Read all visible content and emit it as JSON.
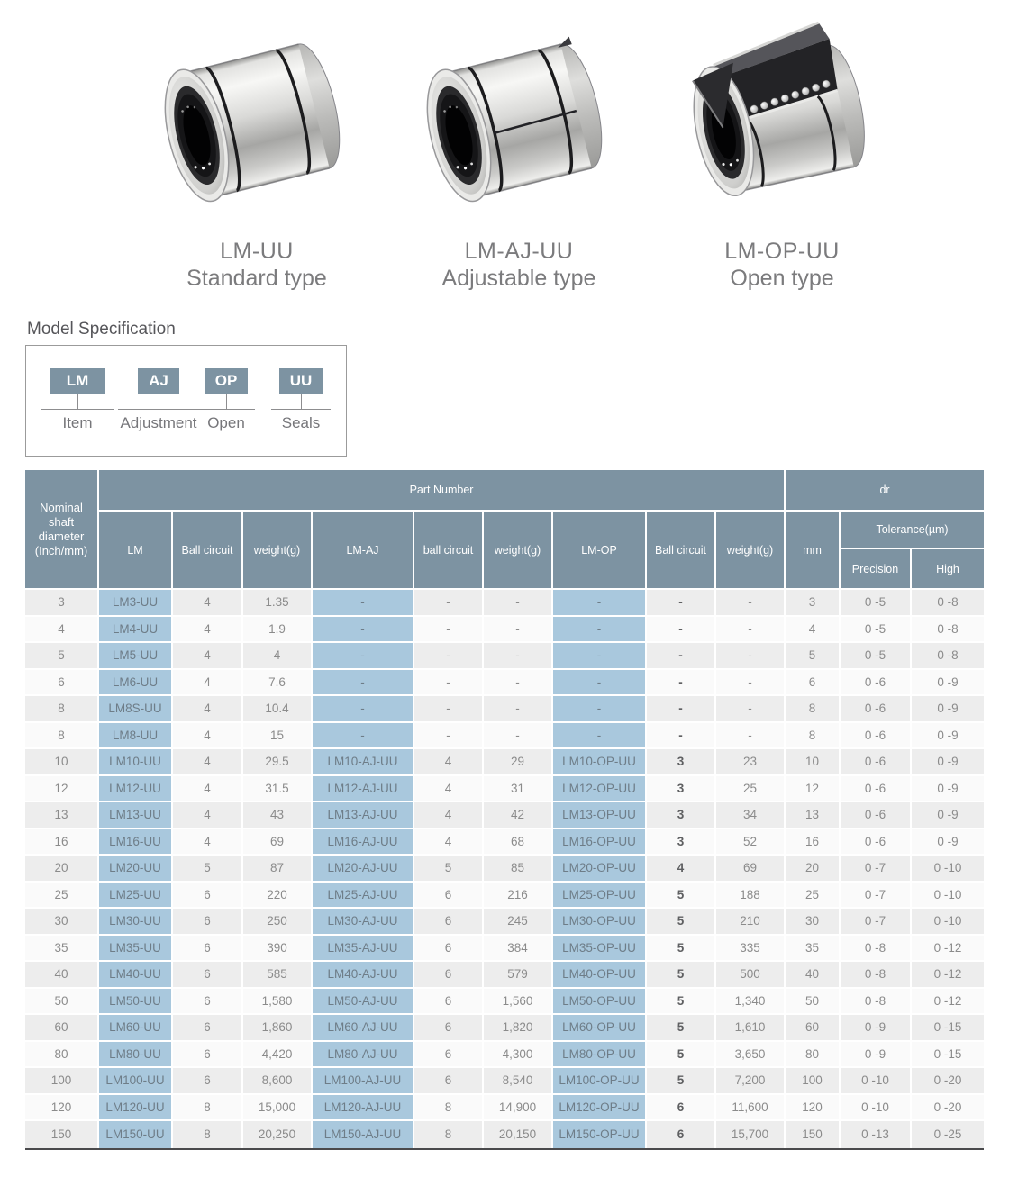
{
  "products": [
    {
      "model": "LM-UU",
      "type": "Standard type"
    },
    {
      "model": "LM-AJ-UU",
      "type": "Adjustable type"
    },
    {
      "model": "LM-OP-UU",
      "type": "Open type"
    }
  ],
  "model_spec": {
    "title": "Model Specification",
    "codes": [
      {
        "code": "LM",
        "label": "Item"
      },
      {
        "code": "AJ",
        "label": "Adjustment"
      },
      {
        "code": "OP",
        "label": "Open"
      },
      {
        "code": "UU",
        "label": "Seals"
      }
    ]
  },
  "table": {
    "header": {
      "nominal": "Nominal shaft diameter (Inch/mm)",
      "part_number": "Part Number",
      "dr": "dr",
      "tolerance": "Tolerance(µm)",
      "columns": [
        "LM",
        "Ball circuit",
        "weight(g)",
        "LM-AJ",
        "ball circuit",
        "weight(g)",
        "LM-OP",
        "Ball circuit",
        "weight(g)",
        "mm"
      ],
      "tolerance_sub": [
        "Precision",
        "High"
      ]
    },
    "rows": [
      [
        "3",
        "LM3-UU",
        "4",
        "1.35",
        "-",
        "-",
        "-",
        "-",
        "-",
        "-",
        "3",
        "0 -5",
        "0 -8"
      ],
      [
        "4",
        "LM4-UU",
        "4",
        "1.9",
        "-",
        "-",
        "-",
        "-",
        "-",
        "-",
        "4",
        "0 -5",
        "0 -8"
      ],
      [
        "5",
        "LM5-UU",
        "4",
        "4",
        "-",
        "-",
        "-",
        "-",
        "-",
        "-",
        "5",
        "0 -5",
        "0 -8"
      ],
      [
        "6",
        "LM6-UU",
        "4",
        "7.6",
        "-",
        "-",
        "-",
        "-",
        "-",
        "-",
        "6",
        "0 -6",
        "0 -9"
      ],
      [
        "8",
        "LM8S-UU",
        "4",
        "10.4",
        "-",
        "-",
        "-",
        "-",
        "-",
        "-",
        "8",
        "0 -6",
        "0 -9"
      ],
      [
        "8",
        "LM8-UU",
        "4",
        "15",
        "-",
        "-",
        "-",
        "-",
        "-",
        "-",
        "8",
        "0 -6",
        "0 -9"
      ],
      [
        "10",
        "LM10-UU",
        "4",
        "29.5",
        "LM10-AJ-UU",
        "4",
        "29",
        "LM10-OP-UU",
        "3",
        "23",
        "10",
        "0 -6",
        "0 -9"
      ],
      [
        "12",
        "LM12-UU",
        "4",
        "31.5",
        "LM12-AJ-UU",
        "4",
        "31",
        "LM12-OP-UU",
        "3",
        "25",
        "12",
        "0 -6",
        "0 -9"
      ],
      [
        "13",
        "LM13-UU",
        "4",
        "43",
        "LM13-AJ-UU",
        "4",
        "42",
        "LM13-OP-UU",
        "3",
        "34",
        "13",
        "0 -6",
        "0 -9"
      ],
      [
        "16",
        "LM16-UU",
        "4",
        "69",
        "LM16-AJ-UU",
        "4",
        "68",
        "LM16-OP-UU",
        "3",
        "52",
        "16",
        "0 -6",
        "0 -9"
      ],
      [
        "20",
        "LM20-UU",
        "5",
        "87",
        "LM20-AJ-UU",
        "5",
        "85",
        "LM20-OP-UU",
        "4",
        "69",
        "20",
        "0 -7",
        "0 -10"
      ],
      [
        "25",
        "LM25-UU",
        "6",
        "220",
        "LM25-AJ-UU",
        "6",
        "216",
        "LM25-OP-UU",
        "5",
        "188",
        "25",
        "0 -7",
        "0 -10"
      ],
      [
        "30",
        "LM30-UU",
        "6",
        "250",
        "LM30-AJ-UU",
        "6",
        "245",
        "LM30-OP-UU",
        "5",
        "210",
        "30",
        "0 -7",
        "0 -10"
      ],
      [
        "35",
        "LM35-UU",
        "6",
        "390",
        "LM35-AJ-UU",
        "6",
        "384",
        "LM35-OP-UU",
        "5",
        "335",
        "35",
        "0 -8",
        "0 -12"
      ],
      [
        "40",
        "LM40-UU",
        "6",
        "585",
        "LM40-AJ-UU",
        "6",
        "579",
        "LM40-OP-UU",
        "5",
        "500",
        "40",
        "0 -8",
        "0 -12"
      ],
      [
        "50",
        "LM50-UU",
        "6",
        "1,580",
        "LM50-AJ-UU",
        "6",
        "1,560",
        "LM50-OP-UU",
        "5",
        "1,340",
        "50",
        "0 -8",
        "0 -12"
      ],
      [
        "60",
        "LM60-UU",
        "6",
        "1,860",
        "LM60-AJ-UU",
        "6",
        "1,820",
        "LM60-OP-UU",
        "5",
        "1,610",
        "60",
        "0 -9",
        "0 -15"
      ],
      [
        "80",
        "LM80-UU",
        "6",
        "4,420",
        "LM80-AJ-UU",
        "6",
        "4,300",
        "LM80-OP-UU",
        "5",
        "3,650",
        "80",
        "0 -9",
        "0 -15"
      ],
      [
        "100",
        "LM100-UU",
        "6",
        "8,600",
        "LM100-AJ-UU",
        "6",
        "8,540",
        "LM100-OP-UU",
        "5",
        "7,200",
        "100",
        "0 -10",
        "0 -20"
      ],
      [
        "120",
        "LM120-UU",
        "8",
        "15,000",
        "LM120-AJ-UU",
        "8",
        "14,900",
        "LM120-OP-UU",
        "6",
        "11,600",
        "120",
        "0 -10",
        "0 -20"
      ],
      [
        "150",
        "LM150-UU",
        "8",
        "20,250",
        "LM150-AJ-UU",
        "8",
        "20,150",
        "LM150-OP-UU",
        "6",
        "15,700",
        "150",
        "0 -13",
        "0 -25"
      ]
    ]
  },
  "colors": {
    "header_bg": "#7d93a2",
    "highlight_cell_bg": "#a9c8dd",
    "row_stripe": "#ededed",
    "row_light": "#fafafa",
    "table_bottom_border": "#4a4a4c",
    "text_muted": "#8b8b8b",
    "text_dark": "#5f6062"
  }
}
